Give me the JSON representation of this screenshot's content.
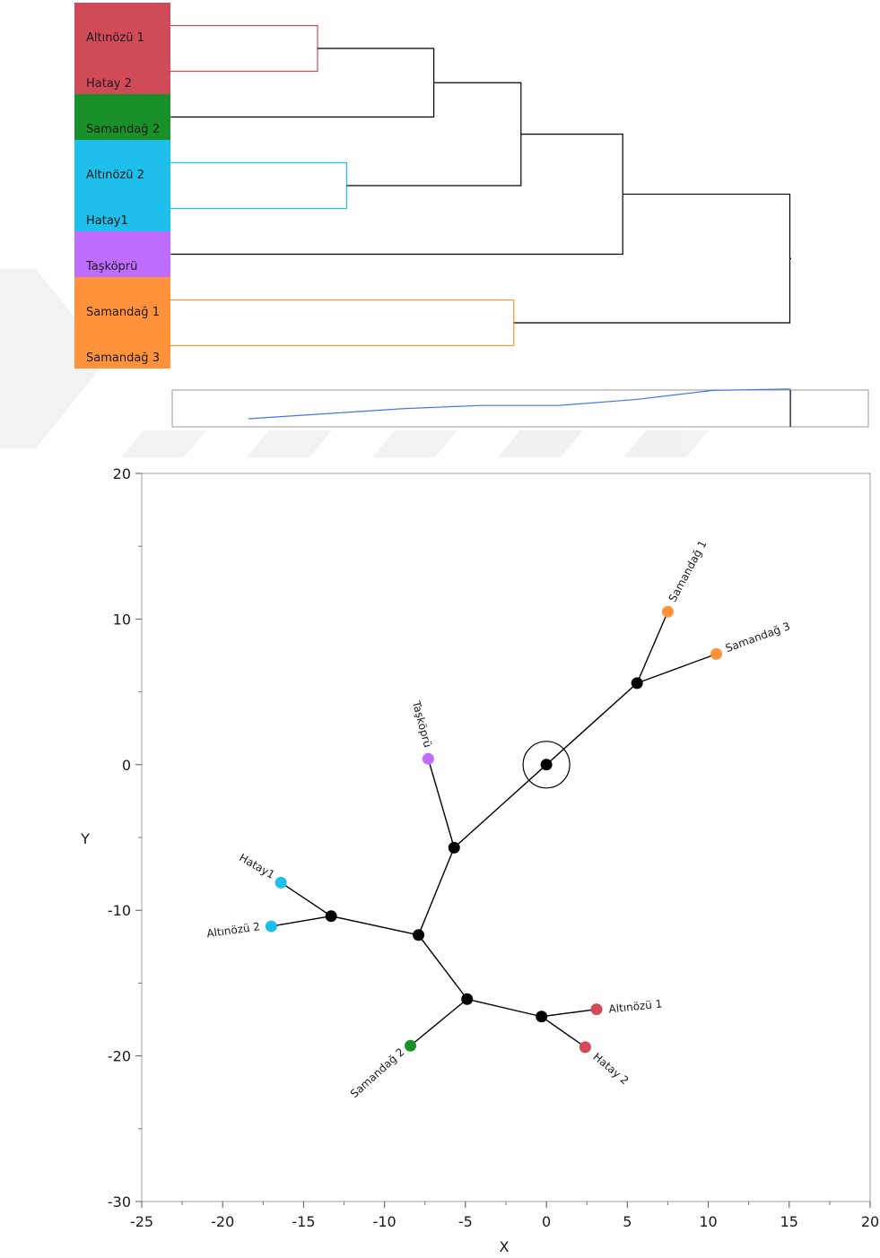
{
  "chart_data": [
    {
      "type": "dendrogram",
      "leaves": [
        {
          "label": "Altınözü 1",
          "color": "#D04A57"
        },
        {
          "label": "Hatay 2",
          "color": "#D04A57"
        },
        {
          "label": "Samandağ 2",
          "color": "#1A9128"
        },
        {
          "label": "Altınözü 2",
          "color": "#1EBFEA"
        },
        {
          "label": "Hatay1",
          "color": "#1EBFEA"
        },
        {
          "label": "Taşköprü",
          "color": "#BF6CFF"
        },
        {
          "label": "Samandağ 1",
          "color": "#FF923A"
        },
        {
          "label": "Samandağ 3",
          "color": "#FF923A"
        }
      ],
      "merges": [
        {
          "a": "L0",
          "b": "L1",
          "height": 0.2,
          "color": "#D04A57"
        },
        {
          "a": "L3",
          "b": "L4",
          "height": 0.24,
          "color": "#1EBFEA"
        },
        {
          "a": "M0",
          "b": "L2",
          "height": 0.36,
          "color": "#000000"
        },
        {
          "a": "L6",
          "b": "L7",
          "height": 0.47,
          "color": "#FF923A"
        },
        {
          "a": "M2",
          "b": "M1",
          "height": 0.48,
          "color": "#000000"
        },
        {
          "a": "M4",
          "b": "L5",
          "height": 0.62,
          "color": "#000000"
        },
        {
          "a": "M5",
          "b": "M3",
          "height": 0.85,
          "color": "#000000"
        }
      ],
      "scree": {
        "values": [
          0.0,
          0.11,
          0.22,
          0.29,
          0.29,
          0.42,
          0.62
        ],
        "cut": 0.62,
        "line_color": "#4A73E8"
      }
    },
    {
      "type": "scatter",
      "xlabel": "X",
      "ylabel": "Y",
      "xlim": [
        -25,
        20
      ],
      "ylim": [
        -30,
        20
      ],
      "xticks": [
        -25,
        -20,
        -15,
        -10,
        -5,
        0,
        5,
        10,
        15,
        20
      ],
      "yticks": [
        -30,
        -20,
        -10,
        0,
        10,
        20
      ],
      "center": {
        "x": 0,
        "y": 0
      },
      "nodes": [
        {
          "id": "n0",
          "x": 0,
          "y": 0
        },
        {
          "id": "n1",
          "x": 5.6,
          "y": 5.6
        },
        {
          "id": "n2",
          "x": -5.7,
          "y": -5.7
        },
        {
          "id": "n3",
          "x": -7.9,
          "y": -11.7
        },
        {
          "id": "n4",
          "x": -13.3,
          "y": -10.4
        },
        {
          "id": "n5",
          "x": -4.9,
          "y": -16.1
        },
        {
          "id": "n6",
          "x": -0.3,
          "y": -17.3
        }
      ],
      "points": [
        {
          "label": "Samandağ 1",
          "x": 7.5,
          "y": 10.5,
          "color": "#FF923A",
          "parent": "n1",
          "label_side": "rot-up"
        },
        {
          "label": "Samandağ 3",
          "x": 10.5,
          "y": 7.6,
          "color": "#FF923A",
          "parent": "n1",
          "label_side": "right"
        },
        {
          "label": "Taşköprü",
          "x": -7.3,
          "y": 0.4,
          "color": "#BF6CFF",
          "parent": "n2",
          "label_side": "rot-down"
        },
        {
          "label": "Hatay1",
          "x": -16.4,
          "y": -8.1,
          "color": "#1EBFEA",
          "parent": "n4",
          "label_side": "left-down"
        },
        {
          "label": "Altınözü 2",
          "x": -17.0,
          "y": -11.1,
          "color": "#1EBFEA",
          "parent": "n4",
          "label_side": "left"
        },
        {
          "label": "Samandağ 2",
          "x": -8.4,
          "y": -19.3,
          "color": "#1A9128",
          "parent": "n5",
          "label_side": "down-left"
        },
        {
          "label": "Altınözü 1",
          "x": 3.1,
          "y": -16.8,
          "color": "#D04A57",
          "parent": "n6",
          "label_side": "right"
        },
        {
          "label": "Hatay 2",
          "x": 2.4,
          "y": -19.4,
          "color": "#D04A57",
          "parent": "n6",
          "label_side": "down-right"
        }
      ],
      "edges": [
        [
          "n0",
          "n1"
        ],
        [
          "n0",
          "n2"
        ],
        [
          "n2",
          "n3"
        ],
        [
          "n3",
          "n4"
        ],
        [
          "n3",
          "n5"
        ],
        [
          "n5",
          "n6"
        ]
      ]
    }
  ]
}
